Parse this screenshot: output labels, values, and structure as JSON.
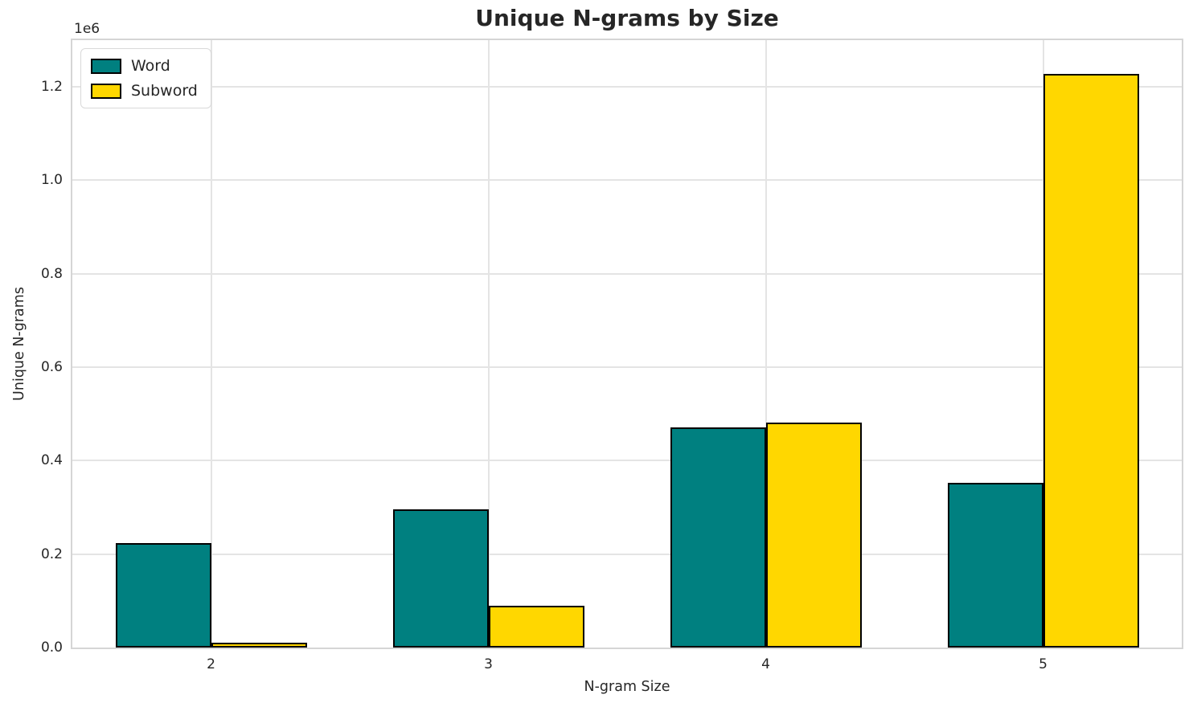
{
  "chart_data": {
    "type": "bar",
    "title": "Unique N-grams by Size",
    "xlabel": "N-gram Size",
    "ylabel": "Unique N-grams",
    "y_offset_text": "1e6",
    "categories": [
      "2",
      "3",
      "4",
      "5"
    ],
    "series": [
      {
        "name": "Word",
        "color": "#008080",
        "values": [
          223000,
          295000,
          471000,
          352000
        ]
      },
      {
        "name": "Subword",
        "color": "#FFD700",
        "values": [
          10000,
          90000,
          482000,
          1228000
        ]
      }
    ],
    "bar_edge_color": "#000000",
    "ylim": [
      0,
      1300000
    ],
    "yticks": [
      0,
      200000,
      400000,
      600000,
      800000,
      1000000,
      1200000
    ],
    "ytick_labels": [
      "0.0",
      "0.2",
      "0.4",
      "0.6",
      "0.8",
      "1.0",
      "1.2"
    ],
    "grid": true,
    "grid_color": "#e4e4e4",
    "spine_color": "#d5d5d5",
    "background_color": "#ffffff",
    "text_color": "#262626",
    "legend": {
      "position": "upper left",
      "entries": [
        "Word",
        "Subword"
      ]
    }
  }
}
